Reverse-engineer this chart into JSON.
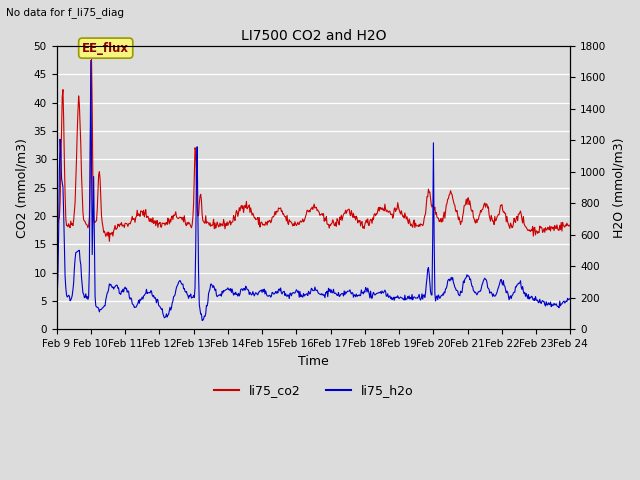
{
  "title": "LI7500 CO2 and H2O",
  "subtitle": "No data for f_li75_diag",
  "xlabel": "Time",
  "ylabel_left": "CO2 (mmol/m3)",
  "ylabel_right": "H2O (mmol/m3)",
  "ylim_left": [
    0,
    50
  ],
  "ylim_right": [
    0,
    1800
  ],
  "yticks_left": [
    0,
    5,
    10,
    15,
    20,
    25,
    30,
    35,
    40,
    45,
    50
  ],
  "yticks_right": [
    0,
    200,
    400,
    600,
    800,
    1000,
    1200,
    1400,
    1600,
    1800
  ],
  "xtick_labels": [
    "Feb 9",
    "Feb 10",
    "Feb 11",
    "Feb 12",
    "Feb 13",
    "Feb 14",
    "Feb 15",
    "Feb 16",
    "Feb 17",
    "Feb 18",
    "Feb 19",
    "Feb 20",
    "Feb 21",
    "Feb 22",
    "Feb 23",
    "Feb 24"
  ],
  "annotation_text": "EE_flux",
  "bg_color": "#dcdcdc",
  "plot_bg_color": "#dcdcdc",
  "co2_color": "#cc0000",
  "h2o_color": "#0000cc",
  "legend_co2": "li75_co2",
  "legend_h2o": "li75_h2o"
}
